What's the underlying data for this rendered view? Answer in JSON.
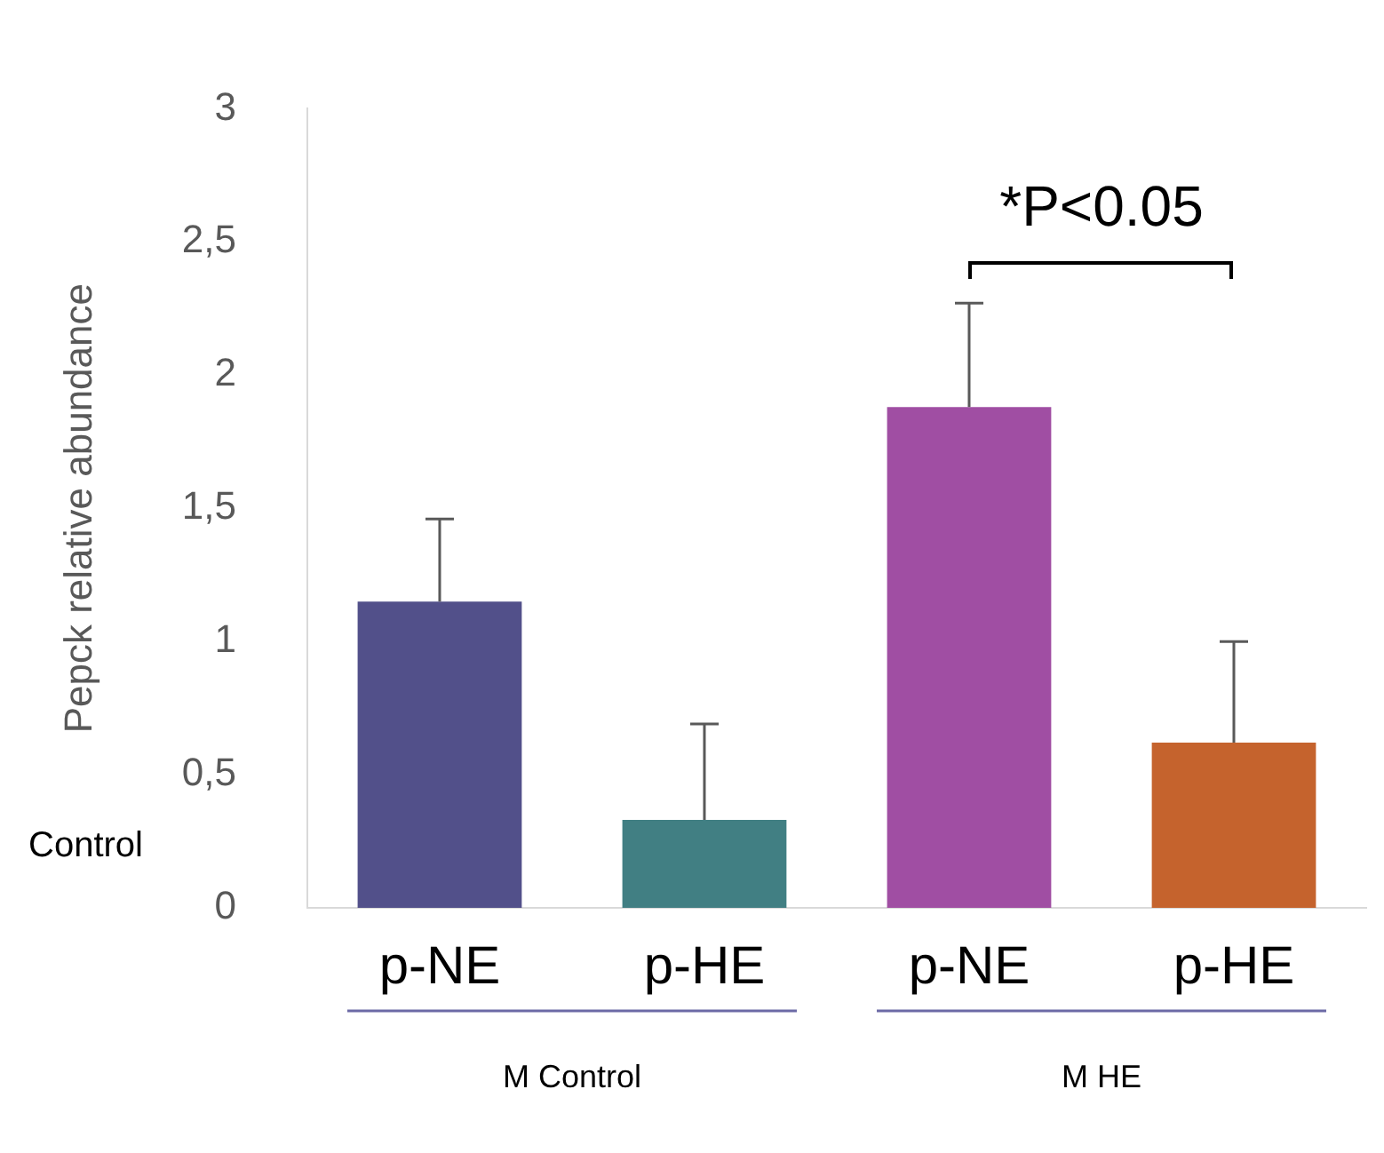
{
  "chart_data": {
    "type": "bar",
    "ylabel": "Pepck relative abundance",
    "categories": [
      "p-NE",
      "p-HE",
      "p-NE",
      "p-HE"
    ],
    "values": [
      1.15,
      0.33,
      1.88,
      0.62
    ],
    "colors": [
      "#52508a",
      "#417f83",
      "#a04ea3",
      "#c5632d"
    ],
    "errors": [
      [
        1.15,
        1.46
      ],
      [
        0.33,
        0.69
      ],
      [
        1.88,
        2.27
      ],
      [
        0.62,
        1.0
      ]
    ],
    "ylim": [
      0,
      3
    ],
    "yticks": [
      0,
      {
        "value": 0.5,
        "label": "0,5"
      },
      1,
      {
        "value": 1.5,
        "label": "1,5"
      },
      2,
      {
        "value": 2.5,
        "label": "2,5"
      },
      3
    ],
    "annotations": [
      "*P<0.05",
      "Control",
      "M Control",
      "M HE"
    ],
    "grid": false,
    "legend": false
  }
}
